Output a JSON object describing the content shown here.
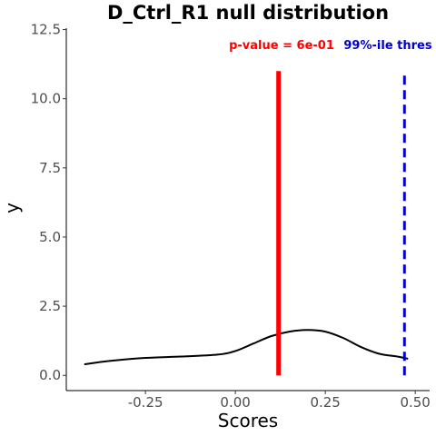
{
  "chart_data": {
    "type": "line",
    "title": "D_Ctrl_R1 null distribution",
    "xlabel": "Scores",
    "ylabel": "y",
    "xlim": [
      -0.47,
      0.54
    ],
    "ylim": [
      -0.55,
      12.55
    ],
    "x_ticks": [
      -0.25,
      0.0,
      0.25,
      0.5
    ],
    "x_tick_labels": [
      "-0.25",
      "0.00",
      "0.25",
      "0.50"
    ],
    "y_ticks": [
      0.0,
      2.5,
      5.0,
      7.5,
      10.0,
      12.5
    ],
    "y_tick_labels": [
      "0.0",
      "2.5",
      "5.0",
      "7.5",
      "10.0",
      "12.5"
    ],
    "grid": false,
    "series": [
      {
        "color": "#000000",
        "x": [
          -0.42,
          -0.35,
          -0.25,
          -0.15,
          -0.05,
          0.0,
          0.05,
          0.1,
          0.15,
          0.2,
          0.25,
          0.3,
          0.35,
          0.4,
          0.45,
          0.48
        ],
        "y": [
          0.4,
          0.52,
          0.63,
          0.68,
          0.75,
          0.88,
          1.15,
          1.42,
          1.58,
          1.64,
          1.58,
          1.35,
          1.02,
          0.78,
          0.68,
          0.6
        ]
      }
    ],
    "observed_line": {
      "x": 0.12,
      "y0": 0.0,
      "y1": 11.0,
      "color": "#ff0000",
      "style": "solid"
    },
    "threshold_line": {
      "x": 0.47,
      "y0": 0.0,
      "y1": 11.0,
      "color": "#0000cc",
      "style": "dashed"
    },
    "annotations": [
      {
        "text": "p-value = 6e-01",
        "color": "#ff0000"
      },
      {
        "text": "99%-ile thres",
        "color": "#0000cc"
      }
    ]
  }
}
